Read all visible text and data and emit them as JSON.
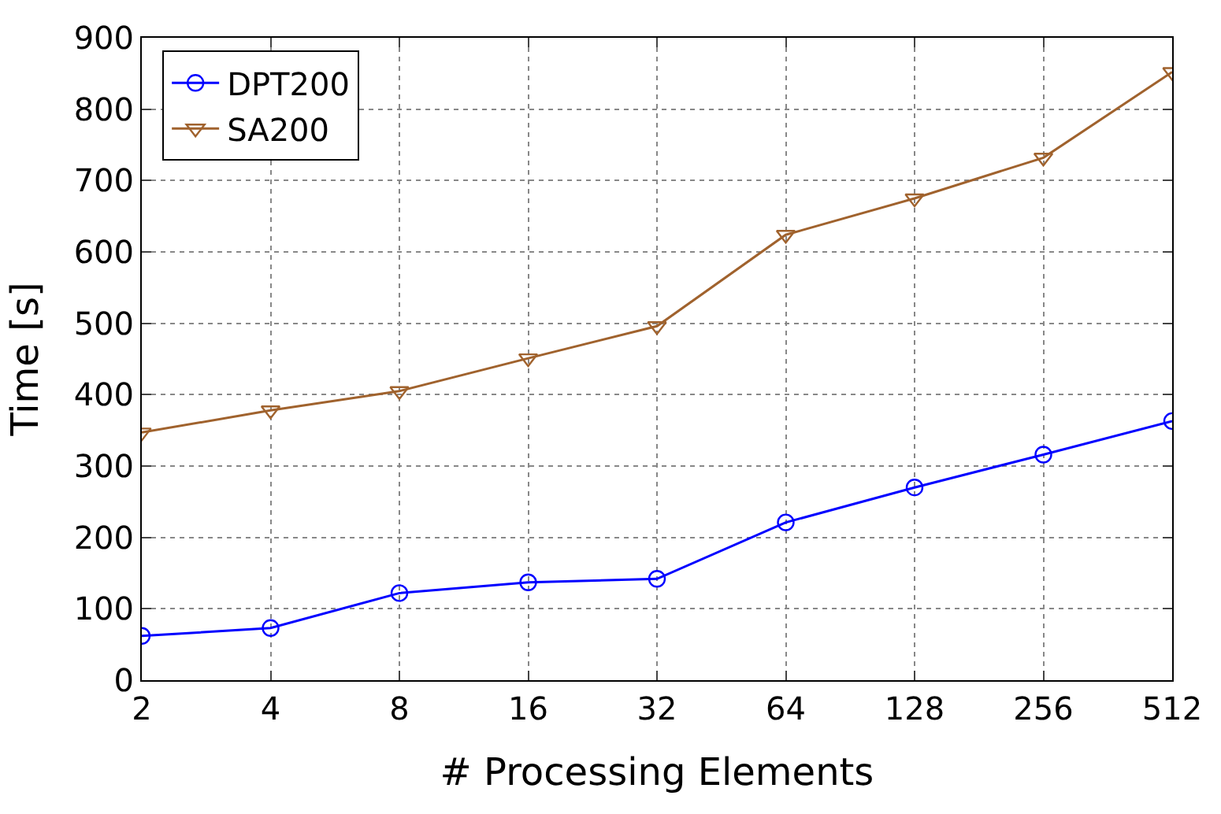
{
  "chart_data": {
    "type": "line",
    "xlabel": "# Processing Elements",
    "ylabel": "Time [s]",
    "categories": [
      "2",
      "4",
      "8",
      "16",
      "32",
      "64",
      "128",
      "256",
      "512"
    ],
    "series": [
      {
        "name": "DPT200",
        "color": "#0000ff",
        "marker": "circle",
        "values": [
          62,
          73,
          122,
          137,
          142,
          221,
          270,
          316,
          363
        ]
      },
      {
        "name": "SA200",
        "color": "#a0622d",
        "marker": "triangle",
        "values": [
          347,
          378,
          405,
          451,
          496,
          624,
          675,
          732,
          852
        ]
      }
    ],
    "ylim": [
      0,
      900
    ],
    "yticks": [
      0,
      100,
      200,
      300,
      400,
      500,
      600,
      700,
      800,
      900
    ],
    "grid": true,
    "legend": "top left",
    "line_style": "solid"
  }
}
